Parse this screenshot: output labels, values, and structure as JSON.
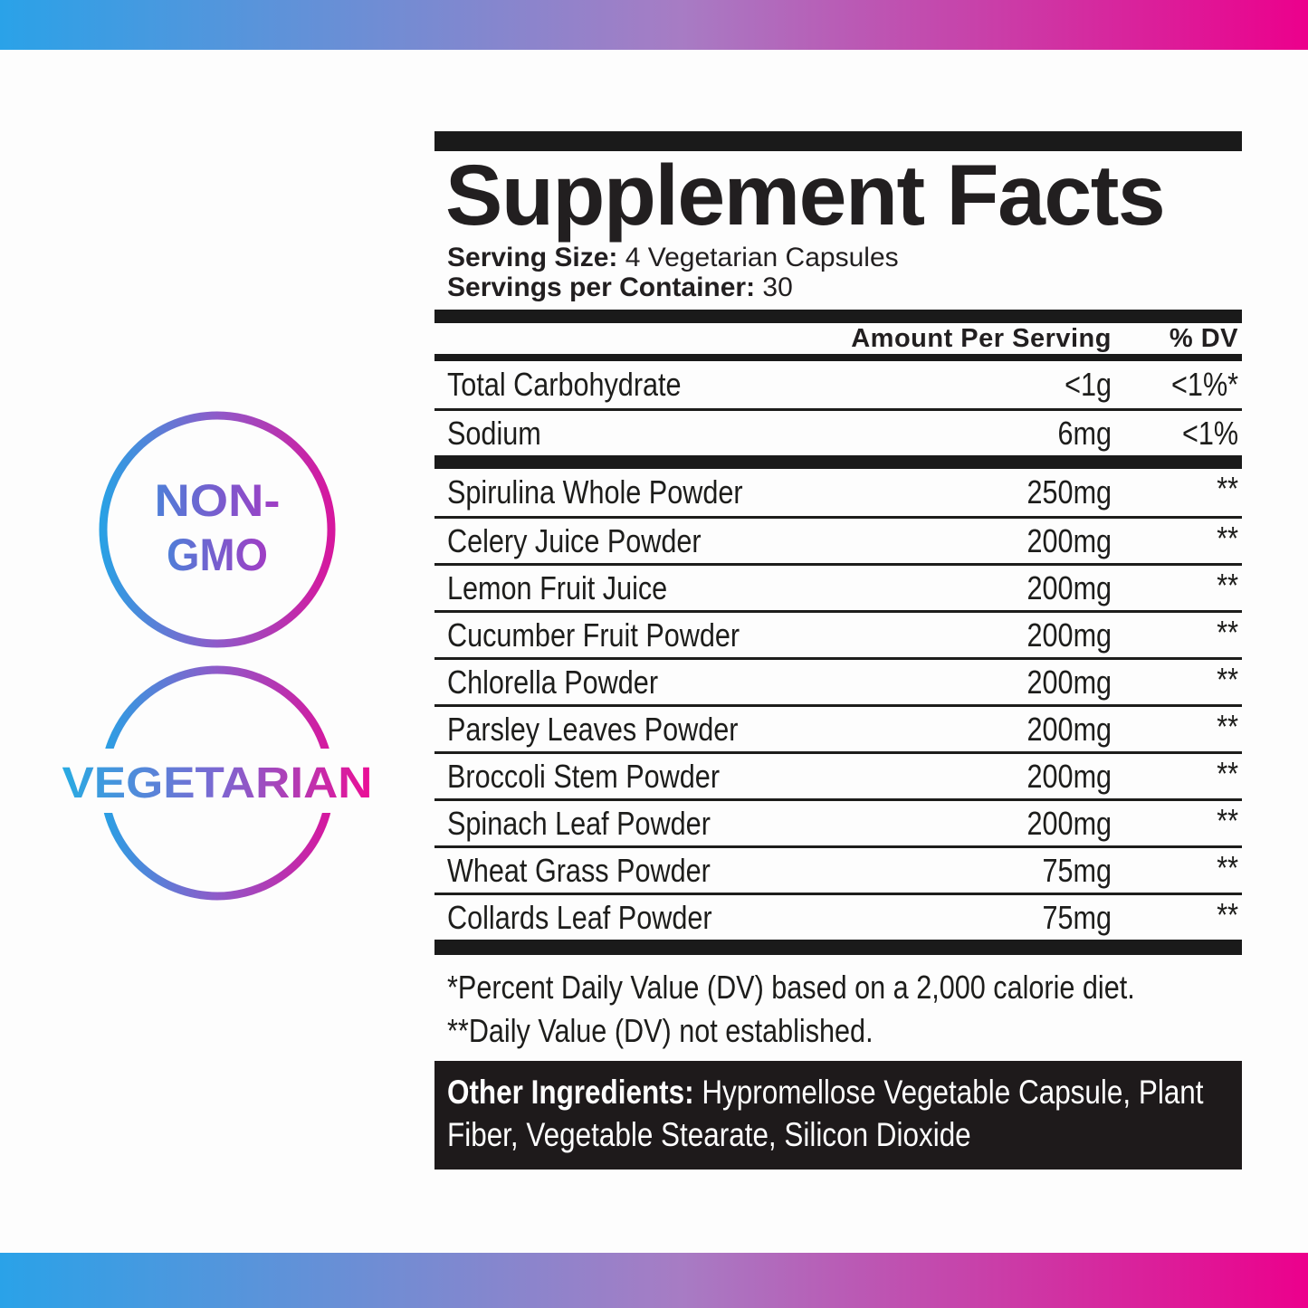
{
  "colors": {
    "gradient_left": "#2aa2e8",
    "gradient_mid": "#a77cc4",
    "gradient_right": "#ec008c",
    "ring_blue": "#2aa0e4",
    "ring_purple": "#8f5ac9",
    "ring_magenta": "#d6179e",
    "panel_black": "#1a1a1a"
  },
  "badges": {
    "non_gmo": {
      "line1": "NON-",
      "line2": "GMO"
    },
    "vegetarian": {
      "label": "VEGETARIAN"
    }
  },
  "panel": {
    "title": "Supplement Facts",
    "serving_size_label": "Serving Size:",
    "serving_size_value": "4 Vegetarian Capsules",
    "servings_label": "Servings per Container:",
    "servings_value": "30",
    "columns": {
      "amount": "Amount Per Serving",
      "dv": "% DV"
    },
    "nutrients": [
      {
        "name": "Total Carbohydrate",
        "amount": "<1g",
        "dv": "<1%*"
      },
      {
        "name": "Sodium",
        "amount": "6mg",
        "dv": "<1%"
      }
    ],
    "ingredients": [
      {
        "name": "Spirulina Whole Powder",
        "amount": "250mg",
        "dv": "**"
      },
      {
        "name": "Celery Juice Powder",
        "amount": "200mg",
        "dv": "**"
      },
      {
        "name": "Lemon Fruit Juice",
        "amount": "200mg",
        "dv": "**"
      },
      {
        "name": "Cucumber Fruit Powder",
        "amount": "200mg",
        "dv": "**"
      },
      {
        "name": "Chlorella Powder",
        "amount": "200mg",
        "dv": "**"
      },
      {
        "name": "Parsley Leaves Powder",
        "amount": "200mg",
        "dv": "**"
      },
      {
        "name": "Broccoli Stem Powder",
        "amount": "200mg",
        "dv": "**"
      },
      {
        "name": "Spinach Leaf Powder",
        "amount": "200mg",
        "dv": "**"
      },
      {
        "name": "Wheat Grass Powder",
        "amount": "75mg",
        "dv": "**"
      },
      {
        "name": "Collards Leaf Powder",
        "amount": "75mg",
        "dv": "**"
      }
    ],
    "footnotes": [
      "*Percent Daily Value (DV) based on a 2,000 calorie diet.",
      "**Daily Value (DV) not established."
    ],
    "other_ingredients_label": "Other Ingredients:",
    "other_ingredients_value": " Hypromellose Vegetable Capsule, Plant Fiber, Vegetable Stearate, Silicon Dioxide"
  }
}
